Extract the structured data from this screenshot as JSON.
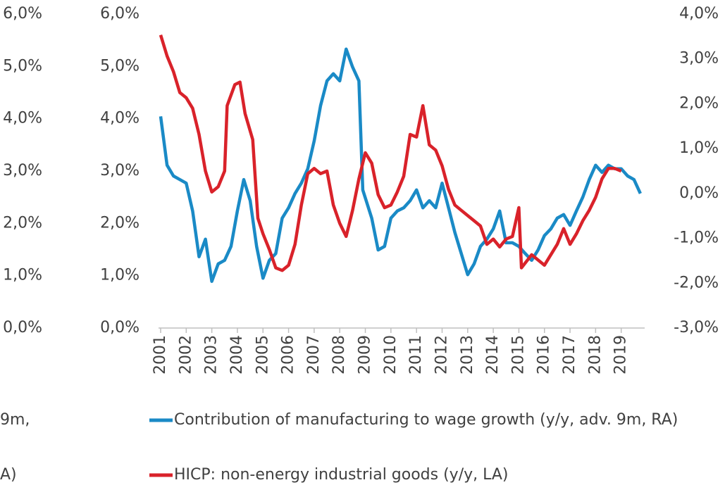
{
  "chart_data": {
    "type": "line",
    "categories": [
      "2001",
      "2002",
      "2003",
      "2004",
      "2005",
      "2006",
      "2007",
      "2008",
      "2009",
      "2010",
      "2011",
      "2012",
      "2013",
      "2014",
      "2015",
      "2016",
      "2017",
      "2018",
      "2019"
    ],
    "xticks": [
      2001,
      2002,
      2003,
      2004,
      2005,
      2006,
      2007,
      2008,
      2009,
      2010,
      2011,
      2012,
      2013,
      2014,
      2015,
      2016,
      2017,
      2018,
      2019
    ],
    "xlim": [
      2001,
      2020
    ],
    "ylim": [
      0,
      6
    ],
    "yticks": [
      {
        "value": 0,
        "label": "0,0%"
      },
      {
        "value": 1,
        "label": "1,0%"
      },
      {
        "value": 2,
        "label": "2,0%"
      },
      {
        "value": 3,
        "label": "3,0%"
      },
      {
        "value": 4,
        "label": "4,0%"
      },
      {
        "value": 5,
        "label": "5,0%"
      },
      {
        "value": 6,
        "label": "6,0%"
      }
    ],
    "y2lim": [
      -3,
      4
    ],
    "y2ticks": [
      {
        "value": -3,
        "label": "-3,0%"
      },
      {
        "value": -2,
        "label": "-2,0%"
      },
      {
        "value": -1,
        "label": "-1,0%"
      },
      {
        "value": 0,
        "label": "0,0%"
      },
      {
        "value": 1,
        "label": "1,0%"
      },
      {
        "value": 2,
        "label": "2,0%"
      },
      {
        "value": 3,
        "label": "3,0%"
      },
      {
        "value": 4,
        "label": "4,0%"
      }
    ],
    "clipped_legend": [
      "9m,",
      "A)"
    ],
    "series": [
      {
        "name": "Contribution of manufacturing to wage growth (y/y, adv. 9m, RA)",
        "color": "#1a8ac6",
        "axis": "y2",
        "x": [
          2001,
          2001.25,
          2001.5,
          2001.75,
          2002,
          2002.25,
          2002.5,
          2002.75,
          2003,
          2003.25,
          2003.5,
          2003.75,
          2004,
          2004.25,
          2004.5,
          2004.75,
          2005,
          2005.25,
          2005.5,
          2005.75,
          2006,
          2006.25,
          2006.5,
          2006.75,
          2007,
          2007.25,
          2007.5,
          2007.75,
          2008,
          2008.25,
          2008.5,
          2008.75,
          2008.9,
          2009.25,
          2009.5,
          2009.75,
          2010,
          2010.25,
          2010.5,
          2010.75,
          2011,
          2011.25,
          2011.5,
          2011.75,
          2012,
          2012.25,
          2012.5,
          2012.75,
          2013,
          2013.25,
          2013.5,
          2013.75,
          2014,
          2014.25,
          2014.5,
          2014.75,
          2015,
          2015.25,
          2015.5,
          2015.75,
          2016,
          2016.25,
          2016.5,
          2016.75,
          2017,
          2017.25,
          2017.5,
          2017.75,
          2018,
          2018.25,
          2018.5,
          2018.75,
          2019,
          2019.25,
          2019.5,
          2019.75
        ],
        "values": [
          1.72,
          0.63,
          0.39,
          0.31,
          0.23,
          -0.39,
          -1.41,
          -1.02,
          -1.96,
          -1.57,
          -1.49,
          -1.18,
          -0.39,
          0.31,
          -0.16,
          -1.18,
          -1.89,
          -1.49,
          -1.34,
          -0.55,
          -0.32,
          0,
          0.23,
          0.55,
          1.17,
          1.96,
          2.51,
          2.67,
          2.51,
          3.22,
          2.82,
          2.51,
          0.08,
          -0.55,
          -1.26,
          -1.18,
          -0.55,
          -0.39,
          -0.32,
          -0.16,
          0.08,
          -0.32,
          -0.16,
          -0.32,
          0.23,
          -0.32,
          -0.87,
          -1.34,
          -1.81,
          -1.57,
          -1.18,
          -1.02,
          -0.79,
          -0.39,
          -1.1,
          -1.1,
          -1.18,
          -1.34,
          -1.49,
          -1.26,
          -0.94,
          -0.79,
          -0.55,
          -0.47,
          -0.71,
          -0.39,
          -0.08,
          0.31,
          0.63,
          0.47,
          0.63,
          0.55,
          0.55,
          0.39,
          0.31,
          0
        ]
      },
      {
        "name": "HICP: non-energy industrial goods (y/y, LA)",
        "color": "#d9222a",
        "x": [
          2001,
          2001.25,
          2001.5,
          2001.75,
          2002,
          2002.25,
          2002.5,
          2002.75,
          2003,
          2003.25,
          2003.5,
          2003.6,
          2003.9,
          2004.1,
          2004.3,
          2004.6,
          2004.8,
          2005,
          2005.25,
          2005.5,
          2005.75,
          2006,
          2006.25,
          2006.5,
          2006.75,
          2007,
          2007.25,
          2007.5,
          2007.75,
          2008,
          2008.25,
          2008.5,
          2008.75,
          2009,
          2009.25,
          2009.5,
          2009.75,
          2010,
          2010.25,
          2010.5,
          2010.75,
          2011,
          2011.25,
          2011.5,
          2011.75,
          2012,
          2012.25,
          2012.5,
          2012.75,
          2013,
          2013.25,
          2013.5,
          2013.75,
          2014,
          2014.25,
          2014.5,
          2014.75,
          2015,
          2015.1,
          2015.5,
          2015.75,
          2016,
          2016.25,
          2016.5,
          2016.75,
          2017,
          2017.25,
          2017.5,
          2017.75,
          2018,
          2018.25,
          2018.5,
          2018.75,
          2019
        ],
        "values": [
          5.6,
          5.2,
          4.9,
          4.5,
          4.4,
          4.2,
          3.7,
          3.0,
          2.6,
          2.7,
          3.0,
          4.25,
          4.65,
          4.7,
          4.1,
          3.6,
          2.1,
          1.8,
          1.5,
          1.15,
          1.1,
          1.2,
          1.6,
          2.35,
          2.95,
          3.05,
          2.95,
          3.0,
          2.35,
          2.0,
          1.75,
          2.25,
          2.85,
          3.35,
          3.15,
          2.55,
          2.3,
          2.35,
          2.6,
          2.9,
          3.7,
          3.65,
          4.25,
          3.5,
          3.4,
          3.1,
          2.65,
          2.35,
          2.25,
          2.15,
          2.05,
          1.95,
          1.6,
          1.7,
          1.55,
          1.7,
          1.75,
          2.3,
          1.15,
          1.4,
          1.3,
          1.2,
          1.4,
          1.6,
          1.9,
          1.6,
          1.8,
          2.05,
          2.25,
          2.5,
          2.85,
          3.05,
          3.05,
          3.0
        ]
      }
    ]
  }
}
